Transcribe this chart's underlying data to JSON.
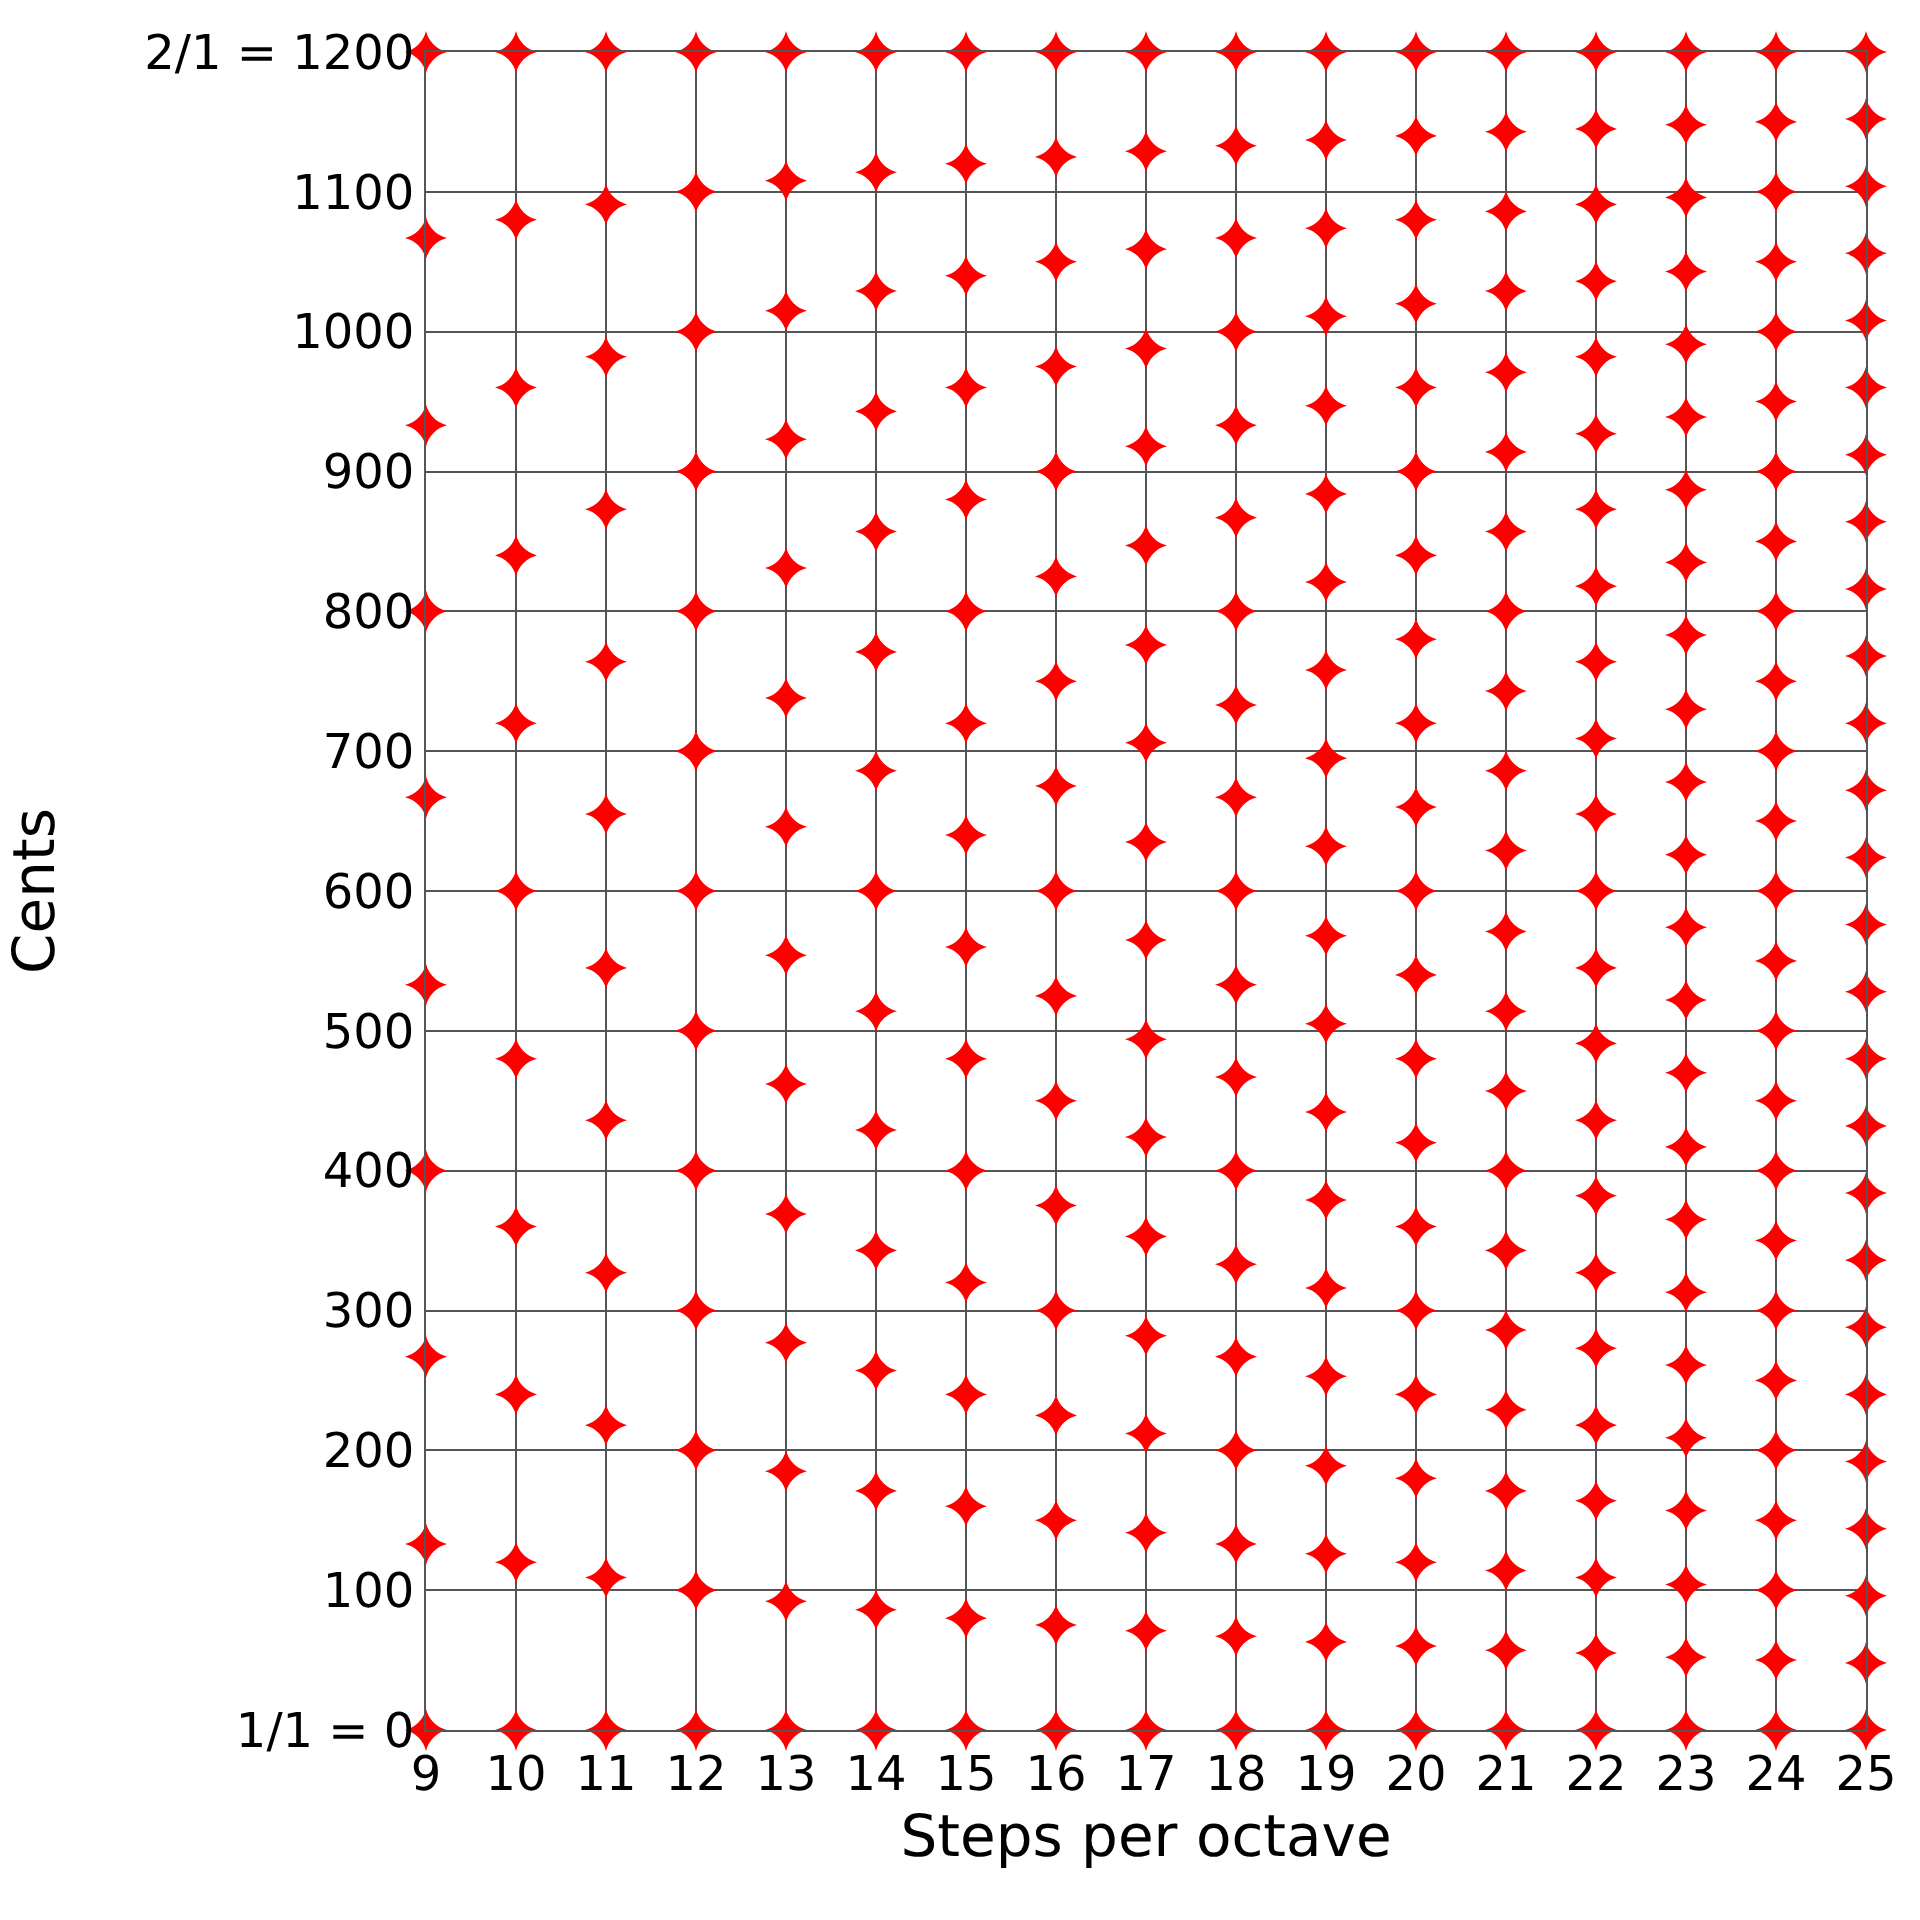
{
  "chart_data": {
    "type": "scatter",
    "xlabel": "Steps per octave",
    "ylabel": "Cents",
    "marker": "star",
    "grid": true,
    "xlim": [
      9,
      25
    ],
    "xticks": [
      9,
      10,
      11,
      12,
      13,
      14,
      15,
      16,
      17,
      18,
      19,
      20,
      21,
      22,
      23,
      24,
      25
    ],
    "ylim": [
      0,
      1200
    ],
    "yticks": [
      {
        "value": 0,
        "label": "1/1 = 0"
      },
      100,
      200,
      300,
      400,
      500,
      600,
      700,
      800,
      900,
      1000,
      1100,
      {
        "value": 1200,
        "label": "2/1 = 1200"
      }
    ],
    "series": [
      {
        "color": "#ff0000",
        "x": [
          9,
          9,
          9,
          9,
          9,
          9,
          9,
          9,
          9,
          9
        ],
        "values": [
          0,
          133,
          267,
          400,
          533,
          667,
          800,
          933,
          1067,
          1200
        ]
      },
      {
        "color": "#ff0000",
        "x": [
          10,
          10,
          10,
          10,
          10,
          10,
          10,
          10,
          10,
          10,
          10
        ],
        "values": [
          0,
          120,
          240,
          360,
          480,
          600,
          720,
          840,
          960,
          1080,
          1200
        ]
      },
      {
        "color": "#ff0000",
        "x": [
          11,
          11,
          11,
          11,
          11,
          11,
          11,
          11,
          11,
          11,
          11,
          11
        ],
        "values": [
          0,
          109,
          218,
          327,
          436,
          545,
          655,
          764,
          873,
          982,
          1091,
          1200
        ]
      },
      {
        "color": "#ff0000",
        "x": [
          12,
          12,
          12,
          12,
          12,
          12,
          12,
          12,
          12,
          12,
          12,
          12,
          12
        ],
        "values": [
          0,
          100,
          200,
          300,
          400,
          500,
          600,
          700,
          800,
          900,
          1000,
          1100,
          1200
        ]
      },
      {
        "color": "#ff0000",
        "x": [
          13,
          13,
          13,
          13,
          13,
          13,
          13,
          13,
          13,
          13,
          13,
          13,
          13,
          13
        ],
        "values": [
          0,
          92,
          185,
          277,
          369,
          462,
          554,
          646,
          738,
          831,
          923,
          1015,
          1108,
          1200
        ]
      },
      {
        "color": "#ff0000",
        "x": [
          14,
          14,
          14,
          14,
          14,
          14,
          14,
          14,
          14,
          14,
          14,
          14,
          14,
          14,
          14
        ],
        "values": [
          0,
          86,
          171,
          257,
          343,
          429,
          514,
          600,
          686,
          771,
          857,
          943,
          1029,
          1114,
          1200
        ]
      },
      {
        "color": "#ff0000",
        "x": [
          15,
          15,
          15,
          15,
          15,
          15,
          15,
          15,
          15,
          15,
          15,
          15,
          15,
          15,
          15,
          15
        ],
        "values": [
          0,
          80,
          160,
          240,
          320,
          400,
          480,
          560,
          640,
          720,
          800,
          880,
          960,
          1040,
          1120,
          1200
        ]
      },
      {
        "color": "#ff0000",
        "x": [
          16,
          16,
          16,
          16,
          16,
          16,
          16,
          16,
          16,
          16,
          16,
          16,
          16,
          16,
          16,
          16,
          16
        ],
        "values": [
          0,
          75,
          150,
          225,
          300,
          375,
          450,
          525,
          600,
          675,
          750,
          825,
          900,
          975,
          1050,
          1125,
          1200
        ]
      },
      {
        "color": "#ff0000",
        "x": [
          17,
          17,
          17,
          17,
          17,
          17,
          17,
          17,
          17,
          17,
          17,
          17,
          17,
          17,
          17,
          17,
          17,
          17
        ],
        "values": [
          0,
          71,
          141,
          212,
          282,
          353,
          424,
          494,
          565,
          635,
          706,
          776,
          847,
          918,
          988,
          1059,
          1129,
          1200
        ]
      },
      {
        "color": "#ff0000",
        "x": [
          18,
          18,
          18,
          18,
          18,
          18,
          18,
          18,
          18,
          18,
          18,
          18,
          18,
          18,
          18,
          18,
          18,
          18,
          18
        ],
        "values": [
          0,
          67,
          133,
          200,
          267,
          333,
          400,
          467,
          533,
          600,
          667,
          733,
          800,
          867,
          933,
          1000,
          1067,
          1133,
          1200
        ]
      },
      {
        "color": "#ff0000",
        "x": [
          19,
          19,
          19,
          19,
          19,
          19,
          19,
          19,
          19,
          19,
          19,
          19,
          19,
          19,
          19,
          19,
          19,
          19,
          19,
          19
        ],
        "values": [
          0,
          63,
          126,
          189,
          253,
          316,
          379,
          442,
          505,
          568,
          632,
          695,
          758,
          821,
          884,
          947,
          1011,
          1074,
          1137,
          1200
        ]
      },
      {
        "color": "#ff0000",
        "x": [
          20,
          20,
          20,
          20,
          20,
          20,
          20,
          20,
          20,
          20,
          20,
          20,
          20,
          20,
          20,
          20,
          20,
          20,
          20,
          20,
          20
        ],
        "values": [
          0,
          60,
          120,
          180,
          240,
          300,
          360,
          420,
          480,
          540,
          600,
          660,
          720,
          780,
          840,
          900,
          960,
          1020,
          1080,
          1140,
          1200
        ]
      },
      {
        "color": "#ff0000",
        "x": [
          21,
          21,
          21,
          21,
          21,
          21,
          21,
          21,
          21,
          21,
          21,
          21,
          21,
          21,
          21,
          21,
          21,
          21,
          21,
          21,
          21,
          21
        ],
        "values": [
          0,
          57,
          114,
          171,
          229,
          286,
          343,
          400,
          457,
          514,
          571,
          629,
          686,
          743,
          800,
          857,
          914,
          971,
          1029,
          1086,
          1143,
          1200
        ]
      },
      {
        "color": "#ff0000",
        "x": [
          22,
          22,
          22,
          22,
          22,
          22,
          22,
          22,
          22,
          22,
          22,
          22,
          22,
          22,
          22,
          22,
          22,
          22,
          22,
          22,
          22,
          22,
          22
        ],
        "values": [
          0,
          55,
          109,
          164,
          218,
          273,
          327,
          382,
          436,
          491,
          545,
          600,
          655,
          709,
          764,
          818,
          873,
          927,
          982,
          1036,
          1091,
          1145,
          1200
        ]
      },
      {
        "color": "#ff0000",
        "x": [
          23,
          23,
          23,
          23,
          23,
          23,
          23,
          23,
          23,
          23,
          23,
          23,
          23,
          23,
          23,
          23,
          23,
          23,
          23,
          23,
          23,
          23,
          23,
          23
        ],
        "values": [
          0,
          52,
          104,
          157,
          209,
          261,
          313,
          365,
          417,
          470,
          522,
          574,
          626,
          678,
          730,
          783,
          835,
          887,
          939,
          991,
          1043,
          1096,
          1148,
          1200
        ]
      },
      {
        "color": "#ff0000",
        "x": [
          24,
          24,
          24,
          24,
          24,
          24,
          24,
          24,
          24,
          24,
          24,
          24,
          24,
          24,
          24,
          24,
          24,
          24,
          24,
          24,
          24,
          24,
          24,
          24,
          24
        ],
        "values": [
          0,
          50,
          100,
          150,
          200,
          250,
          300,
          350,
          400,
          450,
          500,
          550,
          600,
          650,
          700,
          750,
          800,
          850,
          900,
          950,
          1000,
          1050,
          1100,
          1150,
          1200
        ]
      },
      {
        "color": "#ff0000",
        "x": [
          25,
          25,
          25,
          25,
          25,
          25,
          25,
          25,
          25,
          25,
          25,
          25,
          25,
          25,
          25,
          25,
          25,
          25,
          25,
          25,
          25,
          25,
          25,
          25,
          25,
          25
        ],
        "values": [
          0,
          48,
          96,
          144,
          192,
          240,
          288,
          336,
          384,
          432,
          480,
          528,
          576,
          624,
          672,
          720,
          768,
          816,
          864,
          912,
          960,
          1008,
          1056,
          1104,
          1152,
          1200
        ]
      }
    ]
  }
}
